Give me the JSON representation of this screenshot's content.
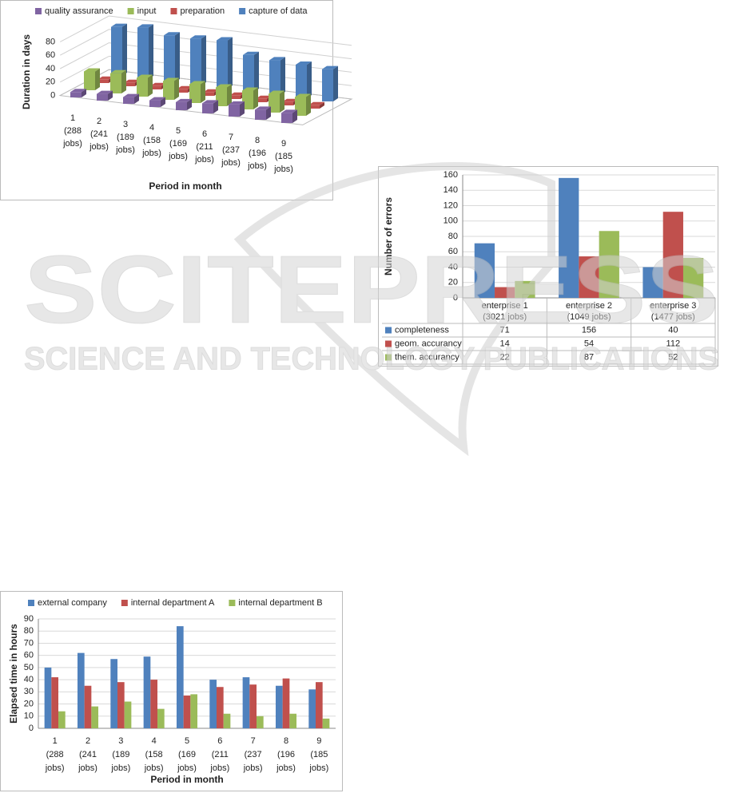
{
  "chart_data": [
    {
      "type": "bar3d",
      "y_label": "Duration in days",
      "x_label": "Period in month",
      "legend": "top",
      "categories": [
        [
          "1",
          "(288",
          "jobs)"
        ],
        [
          "2",
          "(241",
          "jobs)"
        ],
        [
          "3",
          "(189",
          "jobs)"
        ],
        [
          "4",
          "(158",
          "jobs)"
        ],
        [
          "5",
          "(169",
          "jobs)"
        ],
        [
          "6",
          "(211",
          "jobs)"
        ],
        [
          "7",
          "(237",
          "jobs)"
        ],
        [
          "8",
          "(196",
          "jobs)"
        ],
        [
          "9",
          "(185",
          "jobs)"
        ]
      ],
      "series": [
        {
          "name": "quality assurance",
          "color": "#8064a2",
          "values": [
            8,
            10,
            10,
            10,
            12,
            15,
            18,
            15,
            15
          ]
        },
        {
          "name": "input",
          "color": "#9bbb59",
          "values": [
            28,
            30,
            28,
            28,
            28,
            28,
            28,
            28,
            28
          ]
        },
        {
          "name": "preparation",
          "color": "#c0504d",
          "values": [
            5,
            5,
            5,
            5,
            5,
            5,
            5,
            5,
            5
          ]
        },
        {
          "name": "capture of data",
          "color": "#4f81bd",
          "values": [
            73,
            77,
            70,
            70,
            72,
            55,
            52,
            50,
            48
          ]
        }
      ],
      "ylim": [
        0,
        80
      ],
      "yticks": [
        0,
        20,
        40,
        60,
        80
      ],
      "grid": true
    },
    {
      "type": "bar",
      "y_label": "Number of errors",
      "data_table": true,
      "categories": [
        [
          "enterprise 1",
          "(3021 jobs)"
        ],
        [
          "enterprise 2",
          "(1049 jobs)"
        ],
        [
          "enterprise 3",
          "(1477 jobs)"
        ]
      ],
      "series": [
        {
          "name": "completeness",
          "color": "#4f81bd",
          "values": [
            71,
            156,
            40
          ]
        },
        {
          "name": "geom. accurancy",
          "color": "#c0504d",
          "values": [
            14,
            54,
            112
          ]
        },
        {
          "name": "them. accurancy",
          "color": "#9bbb59",
          "values": [
            22,
            87,
            52
          ]
        }
      ],
      "ylim": [
        0,
        160
      ],
      "yticks": [
        0,
        20,
        40,
        60,
        80,
        100,
        120,
        140,
        160
      ],
      "grid": true
    },
    {
      "type": "bar",
      "y_label": "Elapsed time in hours",
      "x_label": "Period in month",
      "legend": "top",
      "categories": [
        [
          "1",
          "(288",
          "jobs)"
        ],
        [
          "2",
          "(241",
          "jobs)"
        ],
        [
          "3",
          "(189",
          "jobs)"
        ],
        [
          "4",
          "(158",
          "jobs)"
        ],
        [
          "5",
          "(169",
          "jobs)"
        ],
        [
          "6",
          "(211",
          "jobs)"
        ],
        [
          "7",
          "(237",
          "jobs)"
        ],
        [
          "8",
          "(196",
          "jobs)"
        ],
        [
          "9",
          "(185",
          "jobs)"
        ]
      ],
      "series": [
        {
          "name": "external company",
          "color": "#4f81bd",
          "values": [
            50,
            62,
            57,
            59,
            84,
            40,
            42,
            35,
            32
          ]
        },
        {
          "name": "internal department A",
          "color": "#c0504d",
          "values": [
            42,
            35,
            38,
            40,
            27,
            34,
            36,
            41,
            38
          ]
        },
        {
          "name": "internal department B",
          "color": "#9bbb59",
          "values": [
            14,
            18,
            22,
            16,
            28,
            12,
            10,
            12,
            8
          ]
        }
      ],
      "ylim": [
        0,
        90
      ],
      "yticks": [
        0,
        10,
        20,
        30,
        40,
        50,
        60,
        70,
        80,
        90
      ],
      "grid": true
    }
  ],
  "watermark": {
    "title": "SCITEPRESS",
    "subtitle": "SCIENCE AND TECHNOLOGY PUBLICATIONS"
  }
}
